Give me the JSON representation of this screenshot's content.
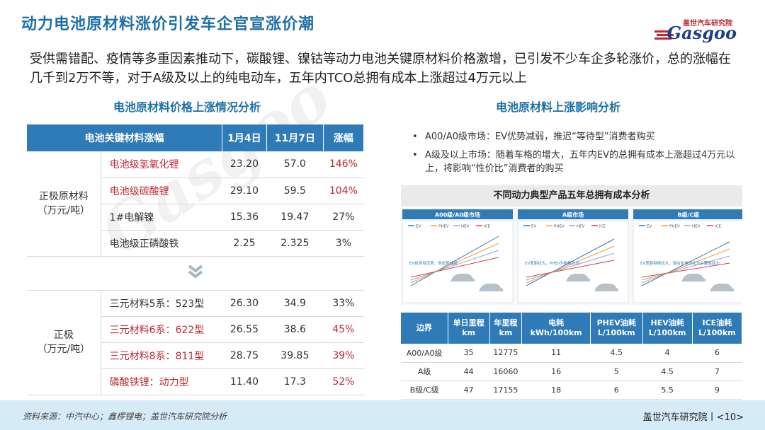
{
  "title": "动力电池原材料涨价引发车企官宣涨价潮",
  "logo": {
    "cn": "盖世汽车研究院",
    "brand": "Gasgoo"
  },
  "intro": "受供需错配、疫情等多重因素推动下，碳酸锂、镍钴等动力电池关键原材料价格激增，已引发不少车企多轮涨价，总的涨幅在几千到2万不等，对于A级及以上的纯电动车，五年内TCO总拥有成本上涨超过4万元以上",
  "left": {
    "heading": "电池原材料价格上涨情况分析",
    "headers": [
      "电池关键材料涨幅",
      "1月4日",
      "11月7日",
      "涨幅"
    ],
    "group1": "正极原材料\n（万元/吨）",
    "group2": "正极\n（万元/吨）",
    "rows1": [
      {
        "name": "电池级氢氧化锂",
        "v1": "23.20",
        "v2": "57.0",
        "pct": "146%",
        "hl": true
      },
      {
        "name": "电池级碳酸锂",
        "v1": "29.10",
        "v2": "59.5",
        "pct": "104%",
        "hl": true
      },
      {
        "name": "1#电解镍",
        "v1": "15.36",
        "v2": "19.47",
        "pct": "27%",
        "hl": false
      },
      {
        "name": "电池级正磷酸铁",
        "v1": "2.25",
        "v2": "2.325",
        "pct": "3%",
        "hl": false
      }
    ],
    "rows2": [
      {
        "name": "三元材料5系：523型",
        "v1": "26.30",
        "v2": "34.9",
        "pct": "33%",
        "hl": false
      },
      {
        "name": "三元材料6系：622型",
        "v1": "26.55",
        "v2": "38.6",
        "pct": "45%",
        "hl": true
      },
      {
        "name": "三元材料8系：811型",
        "v1": "28.75",
        "v2": "39.85",
        "pct": "39%",
        "hl": true
      },
      {
        "name": "磷酸铁锂：动力型",
        "v1": "11.40",
        "v2": "17.3",
        "pct": "52%",
        "hl": true
      }
    ]
  },
  "right": {
    "heading": "电池原材料上涨影响分析",
    "bullets": [
      "A00/A0级市场：EV优势减弱，推迟“等待型”消费者购买",
      "A级及以上市场：随着车格的增大，五年内EV的总拥有成本上涨超过4万元以上，将影响“性价比”消费者的购买"
    ],
    "cost_title": "不同动力典型产品五年总拥有成本分析",
    "panels": [
      "A00级/A0级市场",
      "A级市场",
      "B级/C级"
    ],
    "panel_notes": [
      "EV依然有优势，但优势减弱",
      "EV差距拉大，PHEV为破解方向",
      "EV差距继续拉大，混合化电动化为主要驱动力"
    ],
    "legend": [
      "EV",
      "PHEV",
      "HEV",
      "ICE"
    ],
    "table_headers": [
      "边界",
      "单日里程\nkm",
      "年里程\nkm",
      "电耗\nkWh/100km",
      "PHEV油耗\nL/100km",
      "HEV油耗\nL/100km",
      "ICE油耗\nL/100km"
    ],
    "table_rows": [
      [
        "A00/A0级",
        "35",
        "12775",
        "11",
        "4.5",
        "4",
        "6"
      ],
      [
        "A级",
        "44",
        "16060",
        "16",
        "5",
        "4.5",
        "7"
      ],
      [
        "B级/C级",
        "47",
        "17155",
        "18",
        "6",
        "5.5",
        "9"
      ]
    ]
  },
  "footer": {
    "source": "资料来源：中汽中心；鑫椤锂电；盖世汽车研究院分析",
    "org": "盖世汽车研究院丨<10>"
  },
  "colors": {
    "accent": "#2e7bb7",
    "highlight": "#c0282d",
    "footer": "#d5ebf5"
  }
}
